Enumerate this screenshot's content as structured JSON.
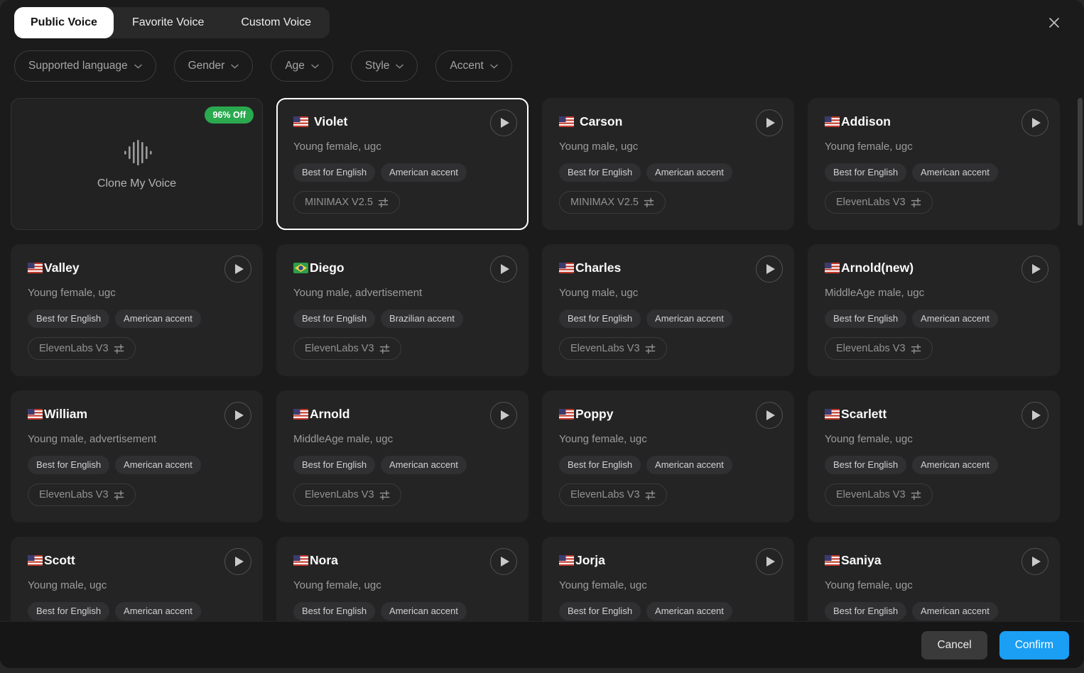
{
  "tabs": [
    {
      "label": "Public Voice",
      "active": true
    },
    {
      "label": "Favorite Voice",
      "active": false
    },
    {
      "label": "Custom Voice",
      "active": false
    }
  ],
  "icons": {
    "close": "x-mark",
    "chevron": "chevron-down",
    "play": "play-triangle",
    "sliders": "model-settings-sliders",
    "waveform": "audio-waveform"
  },
  "filters": [
    {
      "label": "Supported language"
    },
    {
      "label": "Gender"
    },
    {
      "label": "Age"
    },
    {
      "label": "Style"
    },
    {
      "label": "Accent"
    }
  ],
  "clone_card": {
    "discount_badge": "96% Off",
    "label": "Clone My Voice"
  },
  "voice_grid": {
    "voices": [
      {
        "name": "Violet",
        "flag": "us",
        "flag_gap": true,
        "selected": true,
        "description": "Young female, ugc",
        "tags": [
          "Best for English",
          "American accent"
        ],
        "model": "MINIMAX V2.5"
      },
      {
        "name": "Carson",
        "flag": "us",
        "flag_gap": true,
        "selected": false,
        "description": "Young male, ugc",
        "tags": [
          "Best for English",
          "American accent"
        ],
        "model": "MINIMAX V2.5"
      },
      {
        "name": "Addison",
        "flag": "us",
        "flag_gap": false,
        "selected": false,
        "description": "Young female, ugc",
        "tags": [
          "Best for English",
          "American accent"
        ],
        "model": "ElevenLabs V3"
      },
      {
        "name": "Valley",
        "flag": "us",
        "flag_gap": false,
        "selected": false,
        "description": "Young female, ugc",
        "tags": [
          "Best for English",
          "American accent"
        ],
        "model": "ElevenLabs V3"
      },
      {
        "name": "Diego",
        "flag": "br",
        "flag_gap": false,
        "selected": false,
        "description": "Young male, advertisement",
        "tags": [
          "Best for English",
          "Brazilian accent"
        ],
        "model": "ElevenLabs V3"
      },
      {
        "name": "Charles",
        "flag": "us",
        "flag_gap": false,
        "selected": false,
        "description": "Young male, ugc",
        "tags": [
          "Best for English",
          "American accent"
        ],
        "model": "ElevenLabs V3"
      },
      {
        "name": "Arnold(new)",
        "flag": "us",
        "flag_gap": false,
        "selected": false,
        "description": "MiddleAge male, ugc",
        "tags": [
          "Best for English",
          "American accent"
        ],
        "model": "ElevenLabs V3"
      },
      {
        "name": "William",
        "flag": "us",
        "flag_gap": false,
        "selected": false,
        "description": "Young male, advertisement",
        "tags": [
          "Best for English",
          "American accent"
        ],
        "model": "ElevenLabs V3"
      },
      {
        "name": "Arnold",
        "flag": "us",
        "flag_gap": false,
        "selected": false,
        "description": "MiddleAge male, ugc",
        "tags": [
          "Best for English",
          "American accent"
        ],
        "model": "ElevenLabs V3"
      },
      {
        "name": "Poppy",
        "flag": "us",
        "flag_gap": false,
        "selected": false,
        "description": "Young female, ugc",
        "tags": [
          "Best for English",
          "American accent"
        ],
        "model": "ElevenLabs V3"
      },
      {
        "name": "Scarlett",
        "flag": "us",
        "flag_gap": false,
        "selected": false,
        "description": "Young female, ugc",
        "tags": [
          "Best for English",
          "American accent"
        ],
        "model": "ElevenLabs V3"
      },
      {
        "name": "Scott",
        "flag": "us",
        "flag_gap": false,
        "selected": false,
        "description": "Young male, ugc",
        "tags": [
          "Best for English",
          "American accent"
        ]
      },
      {
        "name": "Nora",
        "flag": "us",
        "flag_gap": false,
        "selected": false,
        "description": "Young female, ugc",
        "tags": [
          "Best for English",
          "American accent"
        ]
      },
      {
        "name": "Jorja",
        "flag": "us",
        "flag_gap": false,
        "selected": false,
        "description": "Young female, ugc",
        "tags": [
          "Best for English",
          "American accent"
        ]
      },
      {
        "name": "Saniya",
        "flag": "us",
        "flag_gap": false,
        "selected": false,
        "description": "Young female, ugc",
        "tags": [
          "Best for English",
          "American accent"
        ]
      }
    ]
  },
  "footer": {
    "cancel_label": "Cancel",
    "confirm_label": "Confirm"
  },
  "colors": {
    "confirm_blue": "#1a9ff5",
    "badge_green": "#2aa94f",
    "selected_border": "#ffffff"
  }
}
